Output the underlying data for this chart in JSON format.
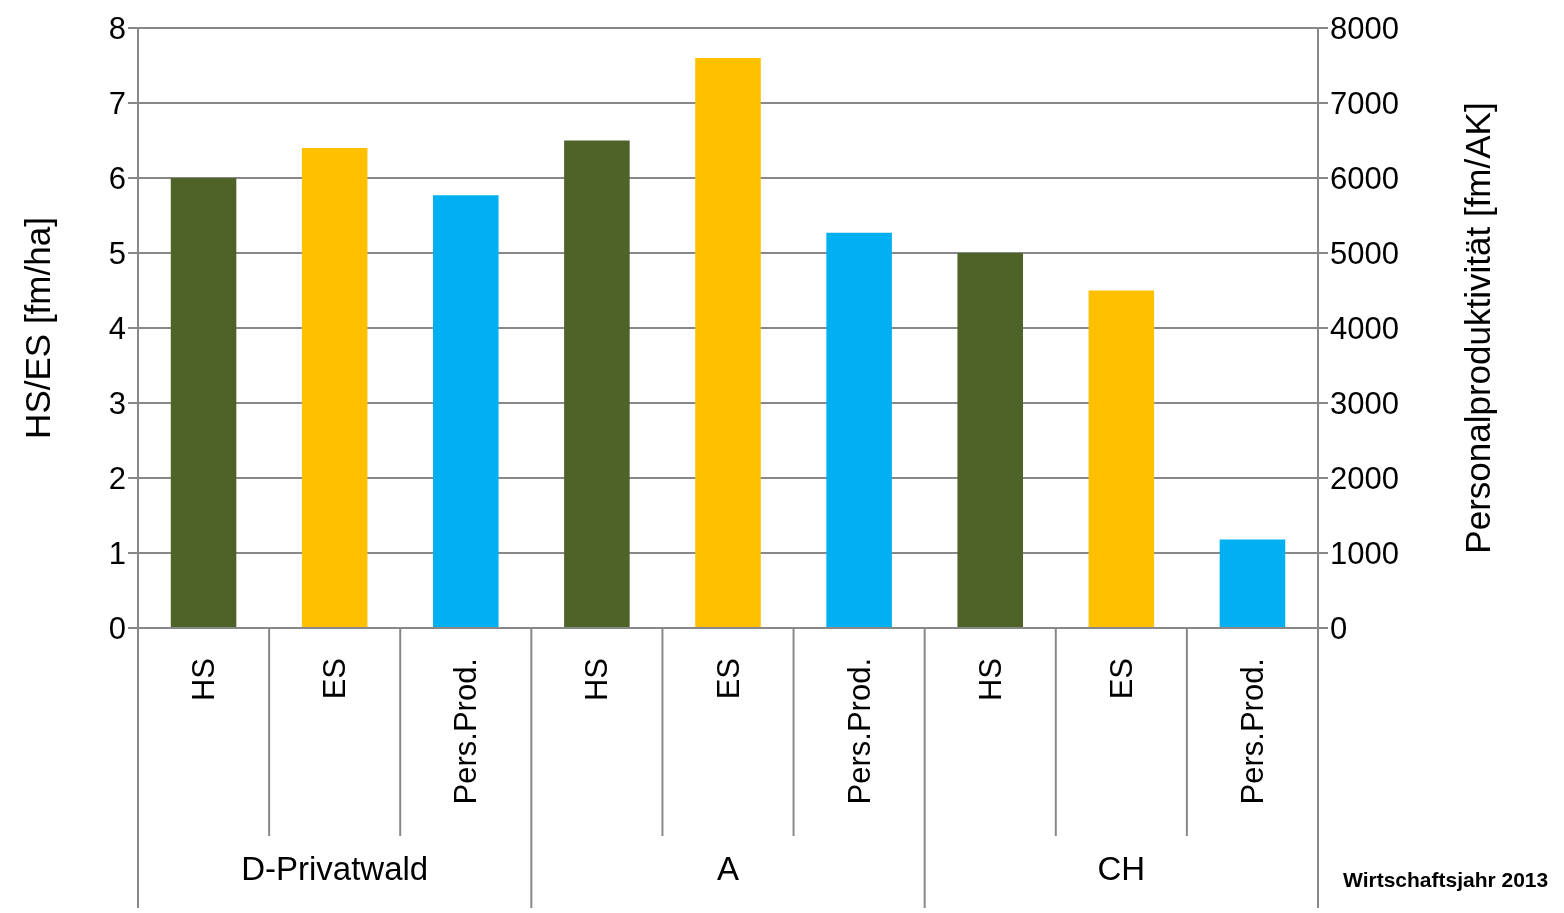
{
  "chart_data": {
    "type": "bar",
    "categories": [
      "HS",
      "ES",
      "Pers.Prod.",
      "HS",
      "ES",
      "Pers.Prod.",
      "HS",
      "ES",
      "Pers.Prod."
    ],
    "series": [
      {
        "color": "#4f6228",
        "values": [
          6.0,
          null,
          null,
          6.5,
          null,
          null,
          5.0,
          null,
          null
        ]
      },
      {
        "color": "#ffc000",
        "values": [
          null,
          6.4,
          null,
          null,
          7.6,
          null,
          null,
          4.5,
          null
        ]
      },
      {
        "color": "#00b0f0",
        "axis": "y2",
        "values": [
          null,
          null,
          5770,
          null,
          null,
          5270,
          null,
          null,
          1180
        ]
      }
    ],
    "ylabel": "HS/ES [fm/ha]",
    "y2label": "Personalproduktivität  [fm/AK]",
    "ylim": [
      0,
      8
    ],
    "yticks": [
      0,
      1,
      2,
      3,
      4,
      5,
      6,
      7,
      8
    ],
    "y2lim": [
      0,
      8000
    ],
    "y2ticks": [
      0,
      1000,
      2000,
      3000,
      4000,
      5000,
      6000,
      7000,
      8000
    ],
    "grid": "y",
    "annotations": [
      "D-Privatwald",
      "A",
      "CH",
      "Wirtschaftsjahr 2013"
    ]
  }
}
